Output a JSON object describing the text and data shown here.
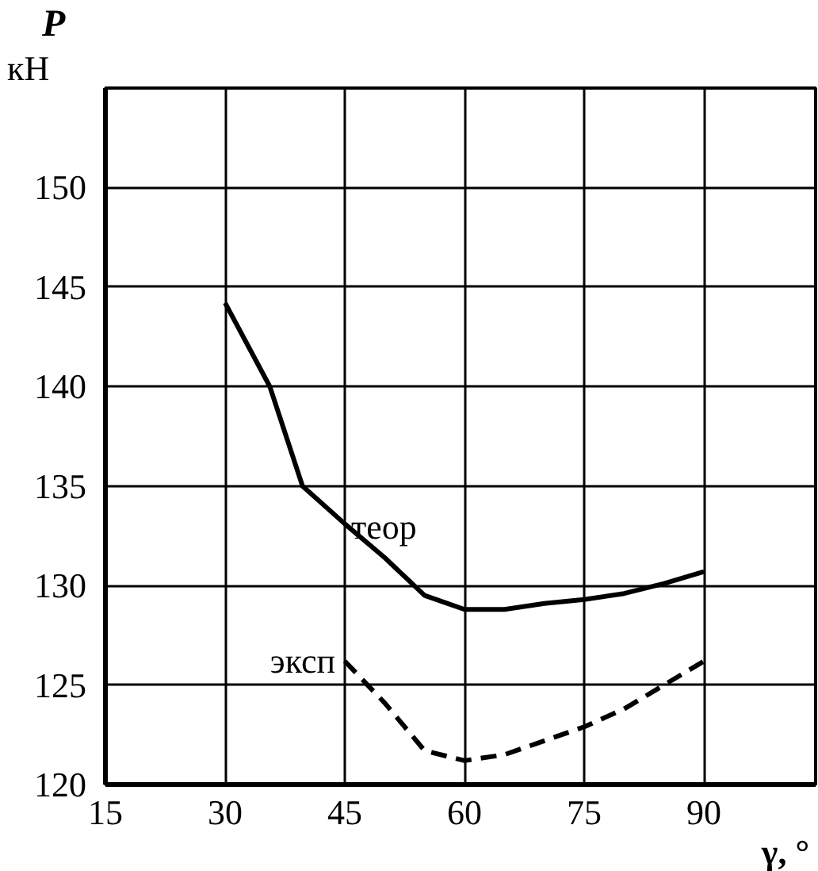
{
  "chart_data": {
    "type": "line",
    "ylabel": "P",
    "xlabel": "γ, °",
    "annotations": [
      "кН",
      "теор",
      "эксп"
    ],
    "xlim": [
      15,
      104
    ],
    "ylim": [
      120,
      155
    ],
    "xticks": [
      15,
      30,
      45,
      60,
      75,
      90
    ],
    "yticks": [
      120,
      125,
      130,
      135,
      140,
      145,
      150
    ],
    "grid": true,
    "marker": "none",
    "series": [
      {
        "color": "#000000",
        "line_style": "solid",
        "x": [
          30,
          35.6,
          39.7,
          45,
          50,
          55,
          60,
          65,
          70,
          75,
          80,
          85,
          90
        ],
        "values": [
          144.2,
          140,
          135,
          133.1,
          131.4,
          129.5,
          128.8,
          128.8,
          129.1,
          129.3,
          129.6,
          130.1,
          130.7
        ]
      },
      {
        "color": "#000000",
        "line_style": "dashed",
        "x": [
          45,
          50,
          55,
          60,
          65,
          70,
          75,
          80,
          85,
          90
        ],
        "values": [
          126.2,
          124.1,
          121.7,
          121.2,
          121.5,
          122.2,
          122.9,
          123.8,
          125.0,
          126.2
        ]
      }
    ]
  }
}
